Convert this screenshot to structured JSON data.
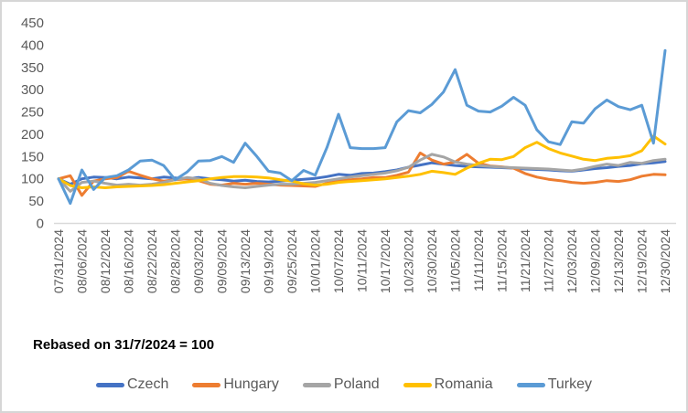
{
  "chart_data": {
    "type": "line",
    "title": "",
    "annotation": "Rebased on 31/7/2024 = 100",
    "grid": false,
    "legend_position": "bottom",
    "ylim": [
      0,
      450
    ],
    "y_ticks": [
      0,
      50,
      100,
      150,
      200,
      250,
      300,
      350,
      400,
      450
    ],
    "axis_color": "#d9d9d9",
    "tick_label_color": "#595959",
    "label_every_n_points": 2,
    "x_labels": [
      "07/31/2024",
      "08/06/2024",
      "08/12/2024",
      "08/16/2024",
      "08/22/2024",
      "08/28/2024",
      "09/03/2024",
      "09/09/2024",
      "09/13/2024",
      "09/19/2024",
      "09/25/2024",
      "10/01/2024",
      "10/07/2024",
      "10/11/2024",
      "10/17/2024",
      "10/23/2024",
      "10/30/2024",
      "11/05/2024",
      "11/11/2024",
      "11/15/2024",
      "11/21/2024",
      "11/27/2024",
      "12/03/2024",
      "12/09/2024",
      "12/13/2024",
      "12/19/2024",
      "12/30/2024"
    ],
    "series": [
      {
        "name": "Czech",
        "color": "#4472C4",
        "values": [
          100,
          88,
          100,
          104,
          103,
          100,
          104,
          102,
          100,
          104,
          102,
          100,
          103,
          100,
          98,
          95,
          97,
          94,
          93,
          95,
          97,
          99,
          101,
          105,
          110,
          108,
          112,
          113,
          116,
          120,
          126,
          131,
          136,
          133,
          130,
          128,
          127,
          126,
          125,
          124,
          122,
          121,
          120,
          118,
          117,
          120,
          123,
          125,
          128,
          130,
          134,
          136,
          139
        ]
      },
      {
        "name": "Hungary",
        "color": "#ED7D31",
        "values": [
          100,
          107,
          63,
          95,
          100,
          103,
          117,
          108,
          100,
          95,
          98,
          100,
          96,
          88,
          86,
          90,
          88,
          90,
          88,
          86,
          85,
          84,
          83,
          90,
          95,
          98,
          100,
          103,
          103,
          108,
          115,
          158,
          142,
          133,
          138,
          155,
          135,
          129,
          127,
          124,
          112,
          104,
          99,
          96,
          92,
          90,
          92,
          96,
          94,
          98,
          106,
          110,
          109
        ]
      },
      {
        "name": "Poland",
        "color": "#A5A5A5",
        "values": [
          100,
          72,
          92,
          95,
          90,
          86,
          88,
          86,
          88,
          92,
          98,
          103,
          100,
          90,
          85,
          82,
          80,
          83,
          86,
          88,
          88,
          90,
          92,
          96,
          100,
          104,
          107,
          110,
          113,
          118,
          126,
          142,
          155,
          149,
          138,
          133,
          130,
          128,
          126,
          125,
          124,
          123,
          122,
          120,
          118,
          122,
          128,
          133,
          130,
          137,
          135,
          141,
          144
        ]
      },
      {
        "name": "Romania",
        "color": "#FFC000",
        "values": [
          100,
          85,
          80,
          82,
          80,
          82,
          83,
          84,
          85,
          87,
          90,
          93,
          96,
          100,
          103,
          105,
          105,
          104,
          102,
          98,
          95,
          89,
          86,
          88,
          92,
          94,
          96,
          98,
          100,
          103,
          106,
          110,
          117,
          114,
          110,
          124,
          135,
          144,
          143,
          150,
          170,
          182,
          168,
          158,
          151,
          144,
          141,
          146,
          148,
          152,
          163,
          196,
          178
        ]
      },
      {
        "name": "Turkey",
        "color": "#5B9BD5",
        "values": [
          100,
          45,
          120,
          76,
          103,
          107,
          120,
          140,
          142,
          130,
          98,
          115,
          140,
          141,
          150,
          137,
          180,
          150,
          117,
          113,
          96,
          119,
          108,
          170,
          245,
          170,
          168,
          168,
          170,
          228,
          253,
          248,
          267,
          295,
          345,
          265,
          252,
          250,
          263,
          283,
          265,
          210,
          183,
          177,
          228,
          225,
          257,
          277,
          262,
          255,
          265,
          180,
          388
        ]
      }
    ]
  }
}
